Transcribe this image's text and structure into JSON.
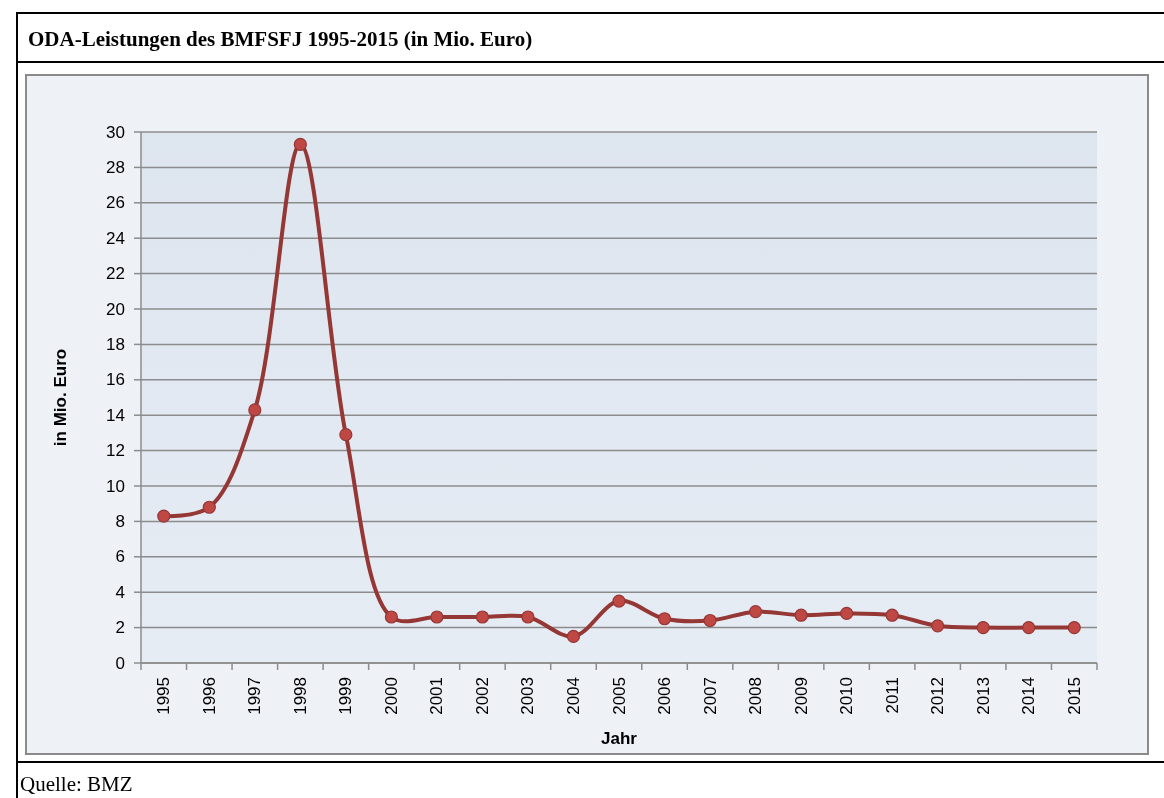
{
  "chart_data": {
    "type": "line",
    "title": "ODA-Leistungen des BMFSFJ 1995-2015 (in Mio. Euro)",
    "xlabel": "Jahr",
    "ylabel": "in Mio. Euro",
    "annotations": [
      "Quelle: BMZ"
    ],
    "categories": [
      "1995",
      "1996",
      "1997",
      "1998",
      "1999",
      "2000",
      "2001",
      "2002",
      "2003",
      "2004",
      "2005",
      "2006",
      "2007",
      "2008",
      "2009",
      "2010",
      "2011",
      "2012",
      "2013",
      "2014",
      "2015"
    ],
    "series": [
      {
        "color": "#953735",
        "values": [
          8.3,
          8.8,
          14.3,
          29.3,
          12.9,
          2.6,
          2.6,
          2.6,
          2.6,
          1.5,
          3.5,
          2.5,
          2.4,
          2.9,
          2.7,
          2.8,
          2.7,
          2.1,
          2.0,
          2.0,
          2.0
        ]
      }
    ],
    "ylim": [
      0,
      30
    ],
    "yticks": [
      0,
      2,
      4,
      6,
      8,
      10,
      12,
      14,
      16,
      18,
      20,
      22,
      24,
      26,
      28,
      30
    ],
    "grid": "y",
    "marker": "circle"
  }
}
